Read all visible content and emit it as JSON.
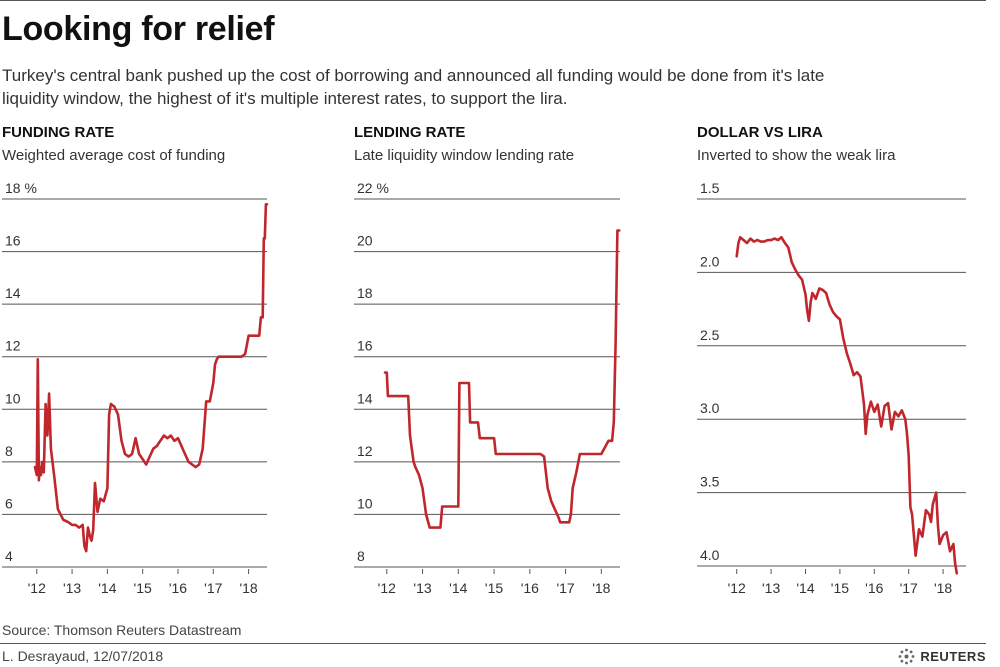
{
  "header": {
    "title": "Looking for relief",
    "subtitle": "Turkey's central bank pushed up the cost of borrowing and announced all funding would be done from it's late liquidity window, the highest of it's multiple interest rates, to support the lira."
  },
  "footer": {
    "source": "Source: Thomson Reuters Datastream",
    "credit": "L. Desrayaud, 12/07/2018",
    "logo": "REUTERS"
  },
  "colors": {
    "line": "#c0272d",
    "grid": "#555555",
    "text": "#333333"
  },
  "chart_data": [
    {
      "type": "line",
      "title": "FUNDING RATE",
      "subtitle": "Weighted average cost of funding",
      "ylim": [
        4,
        18
      ],
      "y_ticks": [
        4,
        6,
        8,
        10,
        12,
        14,
        16,
        18
      ],
      "y_tick_labels": [
        "4",
        "6",
        "8",
        "10",
        "12",
        "14",
        "16",
        "18 %"
      ],
      "xlim": [
        2011.95,
        2018.55
      ],
      "x_ticks": [
        2012,
        2013,
        2014,
        2015,
        2016,
        2017,
        2018
      ],
      "x_tick_labels": [
        "'12",
        "'13",
        "'14",
        "'15",
        "'16",
        "'17",
        "'18"
      ],
      "grid": true,
      "series": [
        {
          "x": [
            2011.95,
            2012.0,
            2012.03,
            2012.06,
            2012.08,
            2012.12,
            2012.15,
            2012.2,
            2012.25,
            2012.3,
            2012.35,
            2012.4,
            2012.5,
            2012.6,
            2012.75,
            2012.9,
            2013.0,
            2013.1,
            2013.2,
            2013.3,
            2013.35,
            2013.4,
            2013.45,
            2013.5,
            2013.55,
            2013.6,
            2013.65,
            2013.72,
            2013.8,
            2013.9,
            2014.0,
            2014.05,
            2014.1,
            2014.2,
            2014.3,
            2014.4,
            2014.5,
            2014.6,
            2014.7,
            2014.8,
            2014.9,
            2015.0,
            2015.1,
            2015.2,
            2015.3,
            2015.4,
            2015.5,
            2015.6,
            2015.7,
            2015.8,
            2015.9,
            2016.0,
            2016.1,
            2016.2,
            2016.3,
            2016.4,
            2016.5,
            2016.6,
            2016.7,
            2016.8,
            2016.9,
            2017.0,
            2017.05,
            2017.1,
            2017.15,
            2017.2,
            2017.3,
            2017.4,
            2017.5,
            2017.6,
            2017.7,
            2017.8,
            2017.9,
            2018.0,
            2018.1,
            2018.2,
            2018.3,
            2018.35,
            2018.4,
            2018.43,
            2018.46,
            2018.49,
            2018.52
          ],
          "y": [
            7.8,
            7.5,
            11.9,
            7.3,
            7.8,
            7.5,
            8.0,
            7.6,
            10.2,
            9.0,
            10.6,
            8.5,
            7.4,
            6.2,
            5.8,
            5.7,
            5.6,
            5.6,
            5.5,
            5.6,
            4.8,
            4.6,
            5.5,
            5.2,
            5.0,
            5.4,
            7.2,
            6.1,
            6.6,
            6.5,
            7.0,
            9.8,
            10.2,
            10.1,
            9.8,
            8.8,
            8.3,
            8.2,
            8.3,
            8.9,
            8.3,
            8.1,
            7.9,
            8.2,
            8.5,
            8.6,
            8.8,
            9.0,
            8.9,
            9.0,
            8.8,
            8.9,
            8.6,
            8.3,
            8.0,
            7.9,
            7.8,
            7.9,
            8.5,
            10.3,
            10.3,
            11.0,
            11.7,
            11.9,
            12.0,
            12.0,
            12.0,
            12.0,
            12.0,
            12.0,
            12.0,
            12.0,
            12.1,
            12.8,
            12.8,
            12.8,
            12.8,
            13.5,
            13.5,
            16.5,
            16.5,
            17.8,
            17.8
          ]
        }
      ]
    },
    {
      "type": "line",
      "title": "LENDING RATE",
      "subtitle": "Late liquidity window lending rate",
      "ylim": [
        8,
        22
      ],
      "y_ticks": [
        8,
        10,
        12,
        14,
        16,
        18,
        20,
        22
      ],
      "y_tick_labels": [
        "8",
        "10",
        "12",
        "14",
        "16",
        "18",
        "20",
        "22 %"
      ],
      "xlim": [
        2011.95,
        2018.55
      ],
      "x_ticks": [
        2012,
        2013,
        2014,
        2015,
        2016,
        2017,
        2018
      ],
      "x_tick_labels": [
        "'12",
        "'13",
        "'14",
        "'15",
        "'16",
        "'17",
        "'18"
      ],
      "grid": true,
      "series": [
        {
          "x": [
            2011.95,
            2012.0,
            2012.03,
            2012.2,
            2012.6,
            2012.65,
            2012.75,
            2012.8,
            2012.9,
            2013.0,
            2013.1,
            2013.2,
            2013.25,
            2013.5,
            2013.55,
            2013.9,
            2014.0,
            2014.03,
            2014.3,
            2014.33,
            2014.55,
            2014.6,
            2015.0,
            2015.05,
            2016.0,
            2016.1,
            2016.2,
            2016.3,
            2016.4,
            2016.5,
            2016.6,
            2016.8,
            2016.85,
            2016.9,
            2017.0,
            2017.1,
            2017.15,
            2017.2,
            2017.3,
            2017.4,
            2017.9,
            2018.0,
            2018.2,
            2018.25,
            2018.3,
            2018.35,
            2018.4,
            2018.45,
            2018.5
          ],
          "y": [
            15.4,
            15.4,
            14.5,
            14.5,
            14.5,
            13.0,
            12.0,
            11.8,
            11.5,
            11.0,
            10.0,
            9.5,
            9.5,
            9.5,
            10.3,
            10.3,
            10.3,
            15.0,
            15.0,
            13.5,
            13.5,
            12.9,
            12.9,
            12.3,
            12.3,
            12.3,
            12.3,
            12.3,
            12.2,
            11.0,
            10.5,
            9.9,
            9.7,
            9.7,
            9.7,
            9.7,
            10.0,
            11.0,
            11.6,
            12.3,
            12.3,
            12.3,
            12.8,
            12.8,
            12.8,
            13.5,
            16.5,
            20.8,
            20.8
          ]
        }
      ]
    },
    {
      "type": "line",
      "title": "DOLLAR VS LIRA",
      "subtitle": "Inverted to show the weak lira",
      "ylim": [
        4.05,
        1.5
      ],
      "y_inverted": true,
      "y_ticks": [
        1.5,
        2.0,
        2.5,
        3.0,
        3.5,
        4.0
      ],
      "y_tick_labels": [
        "1.5",
        "2.0",
        "2.5",
        "3.0",
        "3.5",
        "4.0"
      ],
      "xlim": [
        2011.95,
        2018.55
      ],
      "x_ticks": [
        2012,
        2013,
        2014,
        2015,
        2016,
        2017,
        2018
      ],
      "x_tick_labels": [
        "'12",
        "'13",
        "'14",
        "'15",
        "'16",
        "'17",
        "'18"
      ],
      "grid": true,
      "series": [
        {
          "x": [
            2012.0,
            2012.05,
            2012.1,
            2012.2,
            2012.3,
            2012.4,
            2012.5,
            2012.6,
            2012.7,
            2012.8,
            2012.9,
            2013.0,
            2013.1,
            2013.2,
            2013.3,
            2013.4,
            2013.5,
            2013.6,
            2013.7,
            2013.8,
            2013.9,
            2014.0,
            2014.05,
            2014.1,
            2014.15,
            2014.2,
            2014.3,
            2014.4,
            2014.5,
            2014.6,
            2014.7,
            2014.8,
            2014.9,
            2015.0,
            2015.1,
            2015.2,
            2015.3,
            2015.4,
            2015.5,
            2015.6,
            2015.7,
            2015.75,
            2015.8,
            2015.9,
            2016.0,
            2016.1,
            2016.2,
            2016.3,
            2016.4,
            2016.5,
            2016.6,
            2016.7,
            2016.8,
            2016.9,
            2016.95,
            2017.0,
            2017.05,
            2017.1,
            2017.2,
            2017.3,
            2017.4,
            2017.5,
            2017.6,
            2017.65,
            2017.7,
            2017.8,
            2017.85,
            2017.9,
            2018.0,
            2018.1,
            2018.2,
            2018.3,
            2018.35,
            2018.4
          ],
          "y": [
            1.89,
            1.8,
            1.76,
            1.78,
            1.8,
            1.77,
            1.79,
            1.78,
            1.79,
            1.79,
            1.78,
            1.78,
            1.77,
            1.78,
            1.76,
            1.8,
            1.83,
            1.93,
            1.98,
            2.02,
            2.05,
            2.15,
            2.26,
            2.33,
            2.2,
            2.14,
            2.18,
            2.11,
            2.12,
            2.14,
            2.22,
            2.27,
            2.3,
            2.32,
            2.45,
            2.55,
            2.62,
            2.7,
            2.68,
            2.71,
            2.9,
            3.1,
            2.97,
            2.88,
            2.95,
            2.9,
            3.05,
            2.91,
            2.89,
            3.07,
            2.95,
            2.98,
            2.94,
            3.0,
            3.1,
            3.25,
            3.6,
            3.65,
            3.93,
            3.75,
            3.8,
            3.62,
            3.65,
            3.7,
            3.58,
            3.5,
            3.72,
            3.85,
            3.79,
            3.77,
            3.9,
            3.85,
            3.98,
            4.05
          ]
        }
      ]
    }
  ]
}
